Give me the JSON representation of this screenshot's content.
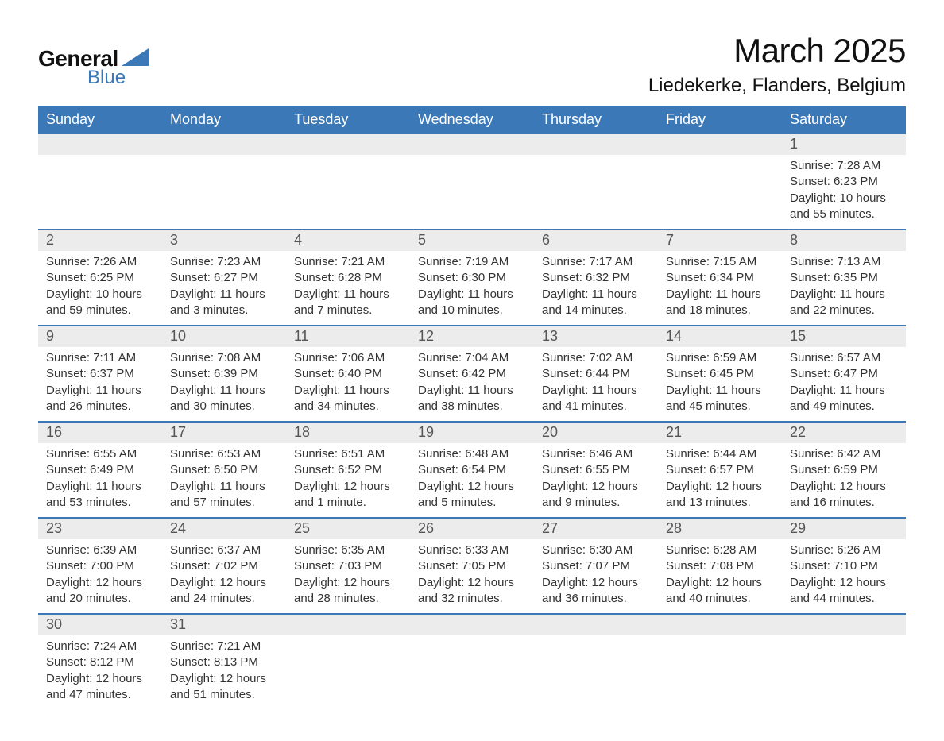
{
  "logo": {
    "general": "General",
    "blue": "Blue",
    "tri_color": "#3a78b8"
  },
  "title": "March 2025",
  "location": "Liedekerke, Flanders, Belgium",
  "colors": {
    "header_bg": "#3a78b8",
    "header_text": "#ffffff",
    "daynum_bg": "#ececec",
    "daynum_text": "#555555",
    "body_text": "#333333",
    "row_border": "#3a78b8"
  },
  "day_headers": [
    "Sunday",
    "Monday",
    "Tuesday",
    "Wednesday",
    "Thursday",
    "Friday",
    "Saturday"
  ],
  "weeks": [
    [
      null,
      null,
      null,
      null,
      null,
      null,
      {
        "n": "1",
        "sunrise": "Sunrise: 7:28 AM",
        "sunset": "Sunset: 6:23 PM",
        "day": "Daylight: 10 hours and 55 minutes."
      }
    ],
    [
      {
        "n": "2",
        "sunrise": "Sunrise: 7:26 AM",
        "sunset": "Sunset: 6:25 PM",
        "day": "Daylight: 10 hours and 59 minutes."
      },
      {
        "n": "3",
        "sunrise": "Sunrise: 7:23 AM",
        "sunset": "Sunset: 6:27 PM",
        "day": "Daylight: 11 hours and 3 minutes."
      },
      {
        "n": "4",
        "sunrise": "Sunrise: 7:21 AM",
        "sunset": "Sunset: 6:28 PM",
        "day": "Daylight: 11 hours and 7 minutes."
      },
      {
        "n": "5",
        "sunrise": "Sunrise: 7:19 AM",
        "sunset": "Sunset: 6:30 PM",
        "day": "Daylight: 11 hours and 10 minutes."
      },
      {
        "n": "6",
        "sunrise": "Sunrise: 7:17 AM",
        "sunset": "Sunset: 6:32 PM",
        "day": "Daylight: 11 hours and 14 minutes."
      },
      {
        "n": "7",
        "sunrise": "Sunrise: 7:15 AM",
        "sunset": "Sunset: 6:34 PM",
        "day": "Daylight: 11 hours and 18 minutes."
      },
      {
        "n": "8",
        "sunrise": "Sunrise: 7:13 AM",
        "sunset": "Sunset: 6:35 PM",
        "day": "Daylight: 11 hours and 22 minutes."
      }
    ],
    [
      {
        "n": "9",
        "sunrise": "Sunrise: 7:11 AM",
        "sunset": "Sunset: 6:37 PM",
        "day": "Daylight: 11 hours and 26 minutes."
      },
      {
        "n": "10",
        "sunrise": "Sunrise: 7:08 AM",
        "sunset": "Sunset: 6:39 PM",
        "day": "Daylight: 11 hours and 30 minutes."
      },
      {
        "n": "11",
        "sunrise": "Sunrise: 7:06 AM",
        "sunset": "Sunset: 6:40 PM",
        "day": "Daylight: 11 hours and 34 minutes."
      },
      {
        "n": "12",
        "sunrise": "Sunrise: 7:04 AM",
        "sunset": "Sunset: 6:42 PM",
        "day": "Daylight: 11 hours and 38 minutes."
      },
      {
        "n": "13",
        "sunrise": "Sunrise: 7:02 AM",
        "sunset": "Sunset: 6:44 PM",
        "day": "Daylight: 11 hours and 41 minutes."
      },
      {
        "n": "14",
        "sunrise": "Sunrise: 6:59 AM",
        "sunset": "Sunset: 6:45 PM",
        "day": "Daylight: 11 hours and 45 minutes."
      },
      {
        "n": "15",
        "sunrise": "Sunrise: 6:57 AM",
        "sunset": "Sunset: 6:47 PM",
        "day": "Daylight: 11 hours and 49 minutes."
      }
    ],
    [
      {
        "n": "16",
        "sunrise": "Sunrise: 6:55 AM",
        "sunset": "Sunset: 6:49 PM",
        "day": "Daylight: 11 hours and 53 minutes."
      },
      {
        "n": "17",
        "sunrise": "Sunrise: 6:53 AM",
        "sunset": "Sunset: 6:50 PM",
        "day": "Daylight: 11 hours and 57 minutes."
      },
      {
        "n": "18",
        "sunrise": "Sunrise: 6:51 AM",
        "sunset": "Sunset: 6:52 PM",
        "day": "Daylight: 12 hours and 1 minute."
      },
      {
        "n": "19",
        "sunrise": "Sunrise: 6:48 AM",
        "sunset": "Sunset: 6:54 PM",
        "day": "Daylight: 12 hours and 5 minutes."
      },
      {
        "n": "20",
        "sunrise": "Sunrise: 6:46 AM",
        "sunset": "Sunset: 6:55 PM",
        "day": "Daylight: 12 hours and 9 minutes."
      },
      {
        "n": "21",
        "sunrise": "Sunrise: 6:44 AM",
        "sunset": "Sunset: 6:57 PM",
        "day": "Daylight: 12 hours and 13 minutes."
      },
      {
        "n": "22",
        "sunrise": "Sunrise: 6:42 AM",
        "sunset": "Sunset: 6:59 PM",
        "day": "Daylight: 12 hours and 16 minutes."
      }
    ],
    [
      {
        "n": "23",
        "sunrise": "Sunrise: 6:39 AM",
        "sunset": "Sunset: 7:00 PM",
        "day": "Daylight: 12 hours and 20 minutes."
      },
      {
        "n": "24",
        "sunrise": "Sunrise: 6:37 AM",
        "sunset": "Sunset: 7:02 PM",
        "day": "Daylight: 12 hours and 24 minutes."
      },
      {
        "n": "25",
        "sunrise": "Sunrise: 6:35 AM",
        "sunset": "Sunset: 7:03 PM",
        "day": "Daylight: 12 hours and 28 minutes."
      },
      {
        "n": "26",
        "sunrise": "Sunrise: 6:33 AM",
        "sunset": "Sunset: 7:05 PM",
        "day": "Daylight: 12 hours and 32 minutes."
      },
      {
        "n": "27",
        "sunrise": "Sunrise: 6:30 AM",
        "sunset": "Sunset: 7:07 PM",
        "day": "Daylight: 12 hours and 36 minutes."
      },
      {
        "n": "28",
        "sunrise": "Sunrise: 6:28 AM",
        "sunset": "Sunset: 7:08 PM",
        "day": "Daylight: 12 hours and 40 minutes."
      },
      {
        "n": "29",
        "sunrise": "Sunrise: 6:26 AM",
        "sunset": "Sunset: 7:10 PM",
        "day": "Daylight: 12 hours and 44 minutes."
      }
    ],
    [
      {
        "n": "30",
        "sunrise": "Sunrise: 7:24 AM",
        "sunset": "Sunset: 8:12 PM",
        "day": "Daylight: 12 hours and 47 minutes."
      },
      {
        "n": "31",
        "sunrise": "Sunrise: 7:21 AM",
        "sunset": "Sunset: 8:13 PM",
        "day": "Daylight: 12 hours and 51 minutes."
      },
      null,
      null,
      null,
      null,
      null
    ]
  ]
}
